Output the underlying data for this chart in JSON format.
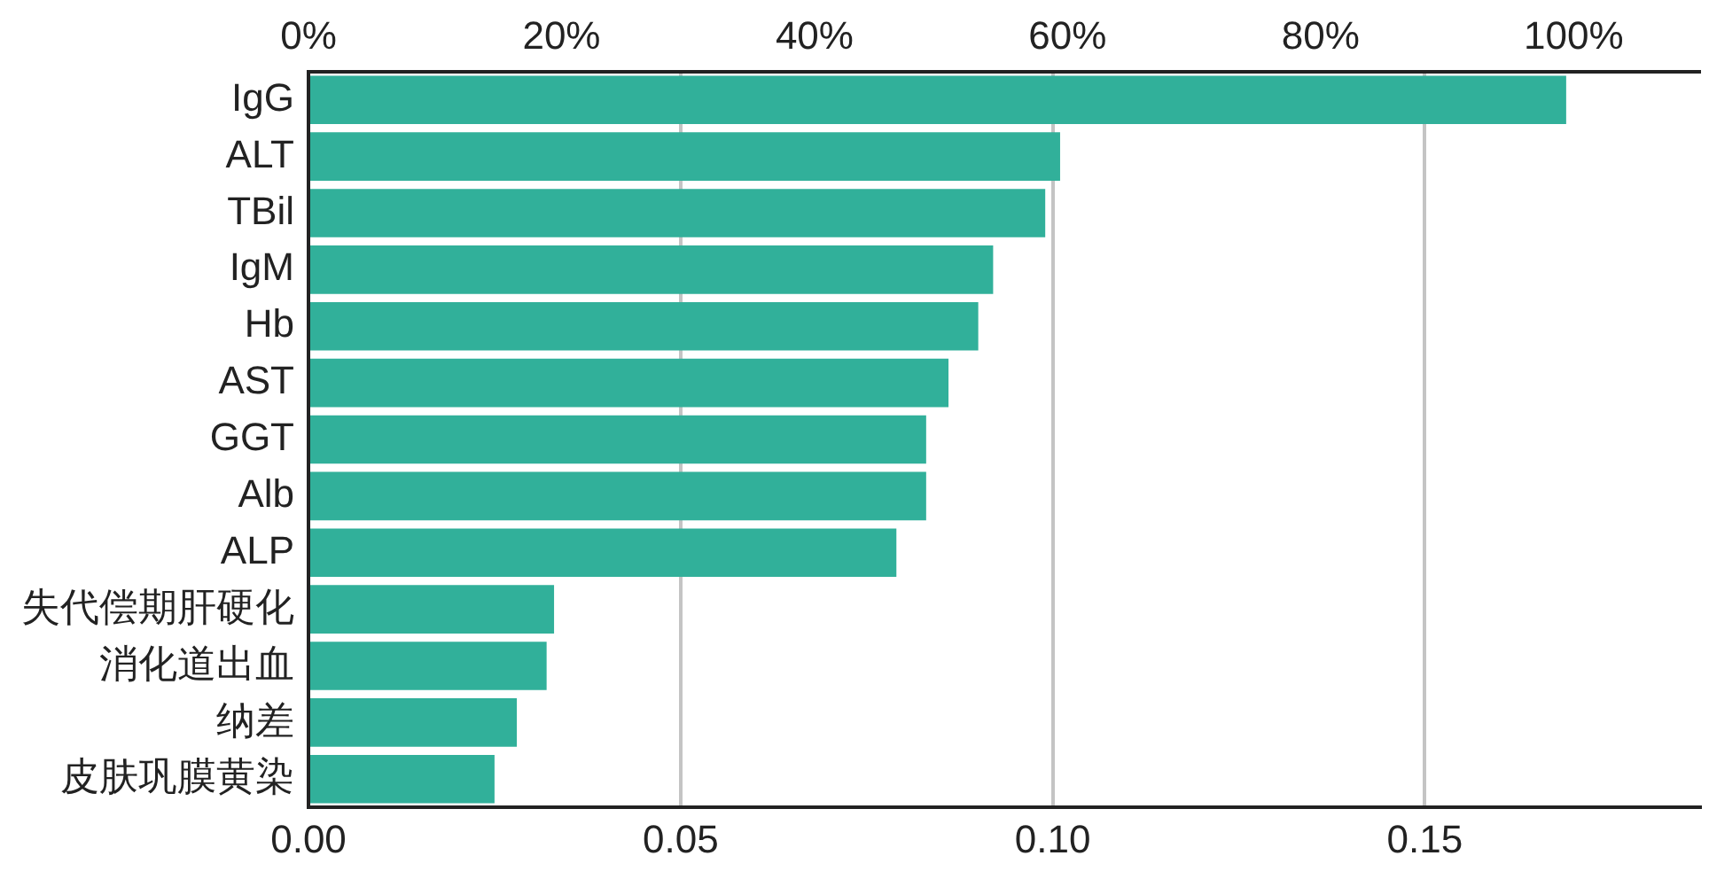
{
  "chart_data": {
    "type": "bar",
    "orientation": "horizontal",
    "categories": [
      "IgG",
      "ALT",
      "TBil",
      "IgM",
      "Hb",
      "AST",
      "GGT",
      "Alb",
      "ALP",
      "失代偿期肝硬化",
      "消化道出血",
      "纳差",
      "皮肤巩膜黄染"
    ],
    "values": [
      0.169,
      0.101,
      0.099,
      0.092,
      0.09,
      0.086,
      0.083,
      0.083,
      0.079,
      0.033,
      0.032,
      0.028,
      0.025
    ],
    "color": "#31b09a",
    "xlim": [
      0,
      0.187
    ],
    "xticks": [
      {
        "value": 0,
        "label": "0.00"
      },
      {
        "value": 0.05,
        "label": "0.05"
      },
      {
        "value": 0.1,
        "label": "0.10"
      },
      {
        "value": 0.15,
        "label": "0.15"
      }
    ],
    "x2lim": [
      0,
      110
    ],
    "x2ticks": [
      {
        "value": 0,
        "label": "0%"
      },
      {
        "value": 20,
        "label": "20%"
      },
      {
        "value": 40,
        "label": "40%"
      },
      {
        "value": 60,
        "label": "60%"
      },
      {
        "value": 80,
        "label": "80%"
      },
      {
        "value": 100,
        "label": "100%"
      }
    ],
    "grid": "x",
    "legend": false
  }
}
